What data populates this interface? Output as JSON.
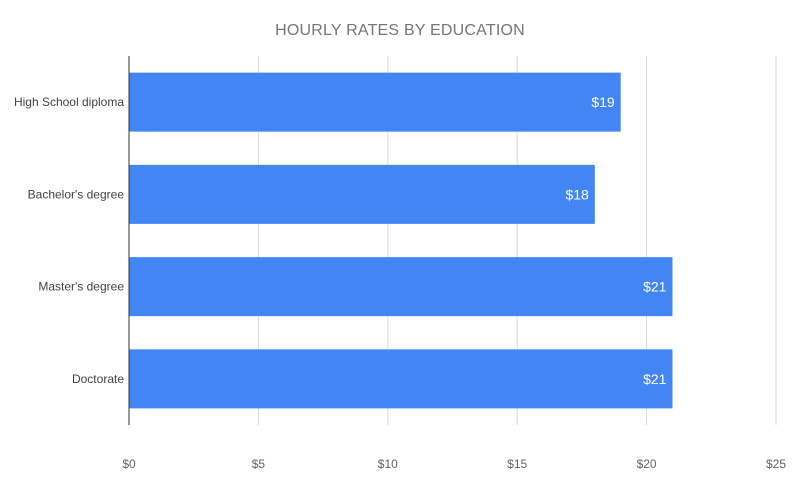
{
  "chart_data": {
    "type": "bar",
    "orientation": "horizontal",
    "title": "HOURLY RATES BY EDUCATION",
    "categories": [
      "High School diploma",
      "Bachelor's degree",
      "Master's degree",
      "Doctorate"
    ],
    "values": [
      19,
      18,
      21,
      21
    ],
    "data_labels": [
      "$19",
      "$18",
      "$21",
      "$21"
    ],
    "x_ticks": [
      "$0",
      "$5",
      "$10",
      "$15",
      "$20",
      "$25"
    ],
    "x_tick_values": [
      0,
      5,
      10,
      15,
      20,
      25
    ],
    "xlim": [
      0,
      25
    ],
    "grid": true,
    "legend": "none",
    "bar_color": "#4285f4"
  }
}
